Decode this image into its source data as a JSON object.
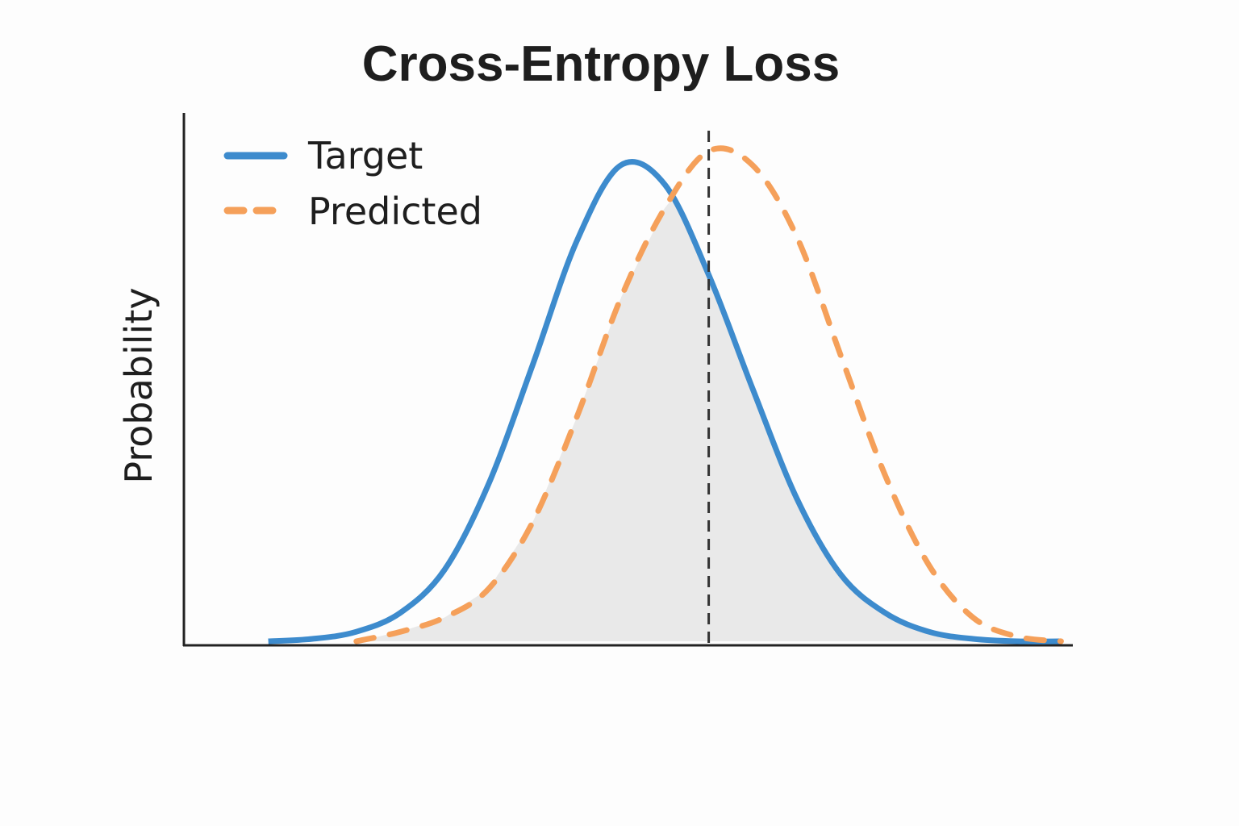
{
  "chart_data": {
    "type": "line",
    "title": "Cross-Entropy Loss",
    "xlabel": "",
    "ylabel": "Probability",
    "xlim": [
      -5,
      5
    ],
    "ylim": [
      0,
      1.1
    ],
    "grid": false,
    "legend_position": "top-left",
    "overlap_shaded": true,
    "reference_line": {
      "x": 0.5,
      "style": "dashed"
    },
    "series": [
      {
        "name": "Target",
        "style": "solid",
        "color": "#3d8bcd",
        "x": [
          -4.5,
          -4.0,
          -3.5,
          -3.0,
          -2.5,
          -2.0,
          -1.5,
          -1.0,
          -0.5,
          0.0,
          0.5,
          1.0,
          1.5,
          2.0,
          2.5,
          3.0,
          3.5,
          4.0,
          4.5
        ],
        "y": [
          0.0,
          0.005,
          0.02,
          0.06,
          0.15,
          0.33,
          0.58,
          0.84,
          1.0,
          0.96,
          0.77,
          0.53,
          0.3,
          0.14,
          0.06,
          0.02,
          0.005,
          0.0,
          0.0
        ]
      },
      {
        "name": "Predicted",
        "style": "dashed",
        "color": "#f5a05a",
        "x": [
          -3.5,
          -3.0,
          -2.5,
          -2.0,
          -1.5,
          -1.0,
          -0.5,
          0.0,
          0.5,
          1.0,
          1.5,
          2.0,
          2.5,
          3.0,
          3.5,
          4.0,
          4.5
        ],
        "y": [
          0.0,
          0.02,
          0.05,
          0.11,
          0.25,
          0.47,
          0.72,
          0.91,
          1.03,
          1.0,
          0.85,
          0.6,
          0.35,
          0.16,
          0.05,
          0.01,
          0.0
        ]
      }
    ]
  },
  "colors": {
    "target": "#3d8bcd",
    "predicted": "#f5a05a",
    "overlap_fill": "#e9e9e9",
    "axis": "#222222",
    "reference_line": "#333333"
  }
}
